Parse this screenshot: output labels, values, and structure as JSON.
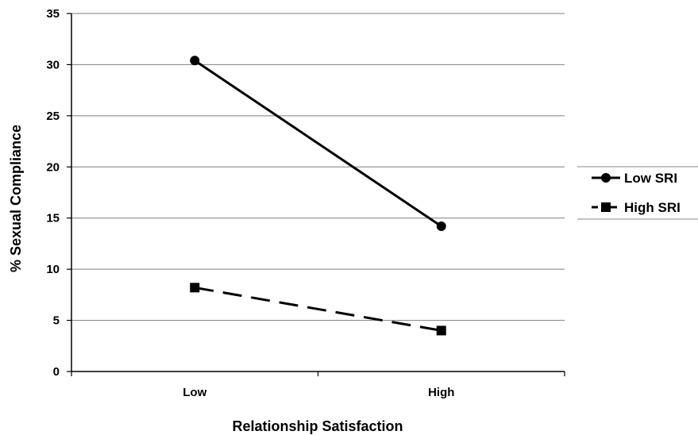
{
  "chart_data": {
    "type": "line",
    "title": "",
    "xlabel": "Relationship Satisfaction",
    "ylabel": "% Sexual Compliance",
    "categories": [
      "Low",
      "High"
    ],
    "ylim": [
      0,
      35
    ],
    "yticks": [
      0,
      5,
      10,
      15,
      20,
      25,
      30,
      35
    ],
    "grid": true,
    "legend_position": "right",
    "series": [
      {
        "name": "Low SRI",
        "values": [
          30.4,
          14.2
        ],
        "marker": "circle",
        "line_style": "solid",
        "color": "#000000"
      },
      {
        "name": "High SRI",
        "values": [
          8.2,
          4.0
        ],
        "marker": "square",
        "line_style": "dashed",
        "color": "#000000"
      }
    ]
  }
}
